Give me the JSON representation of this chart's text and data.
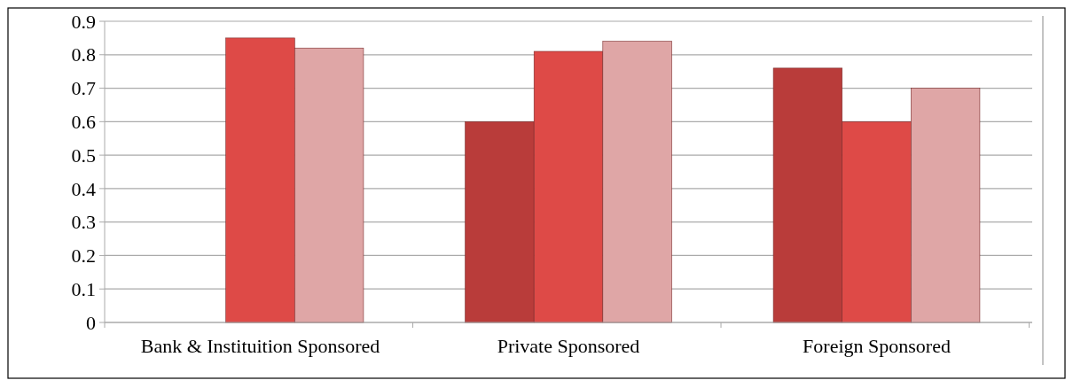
{
  "chart_data": {
    "type": "bar",
    "categories": [
      "Bank & Instituition Sponsored",
      "Private Sponsored",
      "Foreign Sponsored"
    ],
    "series": [
      {
        "color": "#b93c3a",
        "values": [
          0,
          0.6,
          0.76
        ]
      },
      {
        "color": "#de4a47",
        "values": [
          0.85,
          0.81,
          0.6
        ]
      },
      {
        "color": "#dfa6a6",
        "values": [
          0.82,
          0.84,
          0.7
        ]
      }
    ],
    "ylim": [
      0,
      0.9
    ],
    "yticks": [
      0,
      0.1,
      0.2,
      0.3,
      0.4,
      0.5,
      0.6,
      0.7,
      0.8,
      0.9
    ],
    "grid": "y"
  }
}
